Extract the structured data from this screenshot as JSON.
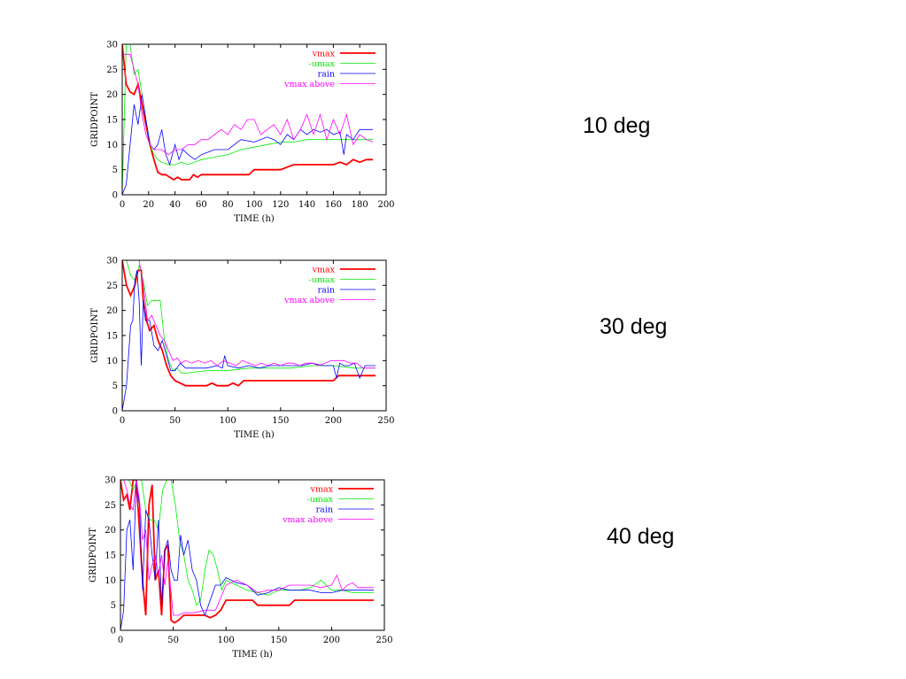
{
  "panel_labels": [
    "10 deg",
    "30 deg",
    "40 deg"
  ],
  "colors": {
    "vmax": "#ff0000",
    "umax": "#00ee00",
    "rain": "#0000ff",
    "vmax_above": "#ff00ff"
  },
  "chart_data": [
    {
      "type": "line",
      "xlabel": "TIME (h)",
      "ylabel": "GRIDPOINT",
      "xlim": [
        0,
        200
      ],
      "ylim": [
        0,
        30
      ],
      "xticks": [
        0,
        20,
        40,
        60,
        80,
        100,
        120,
        140,
        160,
        180,
        200
      ],
      "yticks": [
        0,
        5,
        10,
        15,
        20,
        25,
        30
      ],
      "grid": false,
      "legend_position": "top-right",
      "series": [
        {
          "name": "vmax",
          "color": "#ff0000",
          "x": [
            0,
            3,
            6,
            9,
            12,
            15,
            18,
            21,
            24,
            27,
            30,
            33,
            36,
            39,
            42,
            45,
            48,
            51,
            54,
            57,
            60,
            70,
            80,
            90,
            96,
            100,
            104,
            110,
            120,
            125,
            130,
            135,
            140,
            150,
            160,
            165,
            170,
            175,
            180,
            185,
            190
          ],
          "y": [
            30,
            22,
            20.5,
            20,
            22,
            18,
            14,
            10,
            7,
            4.5,
            4,
            4,
            3.5,
            3,
            3.5,
            3,
            3,
            3,
            4,
            3.5,
            4,
            4,
            4,
            4,
            4,
            5,
            5,
            5,
            5,
            5.5,
            6,
            6,
            6,
            6,
            6,
            6.5,
            6,
            7,
            6.5,
            7,
            7
          ]
        },
        {
          "name": "-umax",
          "color": "#00ee00",
          "x": [
            0,
            3,
            6,
            9,
            12,
            15,
            18,
            21,
            24,
            27,
            30,
            35,
            40,
            45,
            50,
            60,
            70,
            80,
            90,
            100,
            110,
            120,
            130,
            140,
            150,
            160,
            170,
            180,
            190
          ],
          "y": [
            0,
            30,
            30,
            24,
            25,
            20,
            15,
            10,
            8,
            7,
            6.5,
            6,
            6,
            6.5,
            6,
            7,
            7.5,
            8,
            9,
            9.5,
            10,
            10.5,
            10.5,
            11,
            11,
            11,
            11,
            11,
            11
          ]
        },
        {
          "name": "rain",
          "color": "#0000ff",
          "x": [
            0,
            3,
            6,
            9,
            12,
            15,
            18,
            21,
            24,
            27,
            30,
            33,
            36,
            40,
            43,
            46,
            50,
            55,
            60,
            70,
            80,
            90,
            100,
            110,
            115,
            120,
            125,
            130,
            135,
            140,
            145,
            150,
            155,
            160,
            165,
            168,
            170,
            175,
            180,
            185,
            190
          ],
          "y": [
            0,
            2,
            10,
            18,
            14,
            20,
            15,
            10,
            9,
            10,
            13,
            8,
            6,
            10,
            7,
            9,
            8,
            7,
            8,
            9,
            9,
            11,
            10.5,
            11.5,
            11,
            10,
            12,
            11,
            13,
            12,
            13,
            12.5,
            13,
            12,
            12.5,
            8,
            12,
            11,
            13,
            13,
            13
          ]
        },
        {
          "name": "vmax above",
          "color": "#ff00ff",
          "x": [
            0,
            3,
            6,
            9,
            12,
            15,
            18,
            21,
            24,
            27,
            30,
            35,
            40,
            45,
            50,
            55,
            60,
            65,
            70,
            75,
            80,
            85,
            90,
            95,
            100,
            105,
            110,
            115,
            120,
            125,
            130,
            135,
            140,
            145,
            150,
            155,
            160,
            165,
            170,
            175,
            180,
            185,
            190
          ],
          "y": [
            28,
            28,
            28,
            25,
            22,
            16,
            12,
            10,
            9,
            9,
            9,
            8,
            9,
            9,
            10,
            10,
            11,
            11,
            12,
            13,
            12,
            14,
            13,
            15,
            15,
            12,
            13,
            14,
            12,
            15,
            11,
            13,
            16,
            12,
            16,
            11,
            15,
            12,
            16,
            10,
            12,
            11,
            10.5
          ]
        }
      ]
    },
    {
      "type": "line",
      "xlabel": "TIME (h)",
      "ylabel": "GRIDPOINT",
      "xlim": [
        0,
        250
      ],
      "ylim": [
        0,
        30
      ],
      "xticks": [
        0,
        50,
        100,
        150,
        200,
        250
      ],
      "yticks": [
        0,
        5,
        10,
        15,
        20,
        25,
        30
      ],
      "grid": false,
      "legend_position": "top-right",
      "series": [
        {
          "name": "vmax",
          "color": "#ff0000",
          "x": [
            0,
            4,
            8,
            12,
            15,
            18,
            20,
            23,
            26,
            30,
            34,
            38,
            42,
            46,
            50,
            55,
            60,
            70,
            80,
            85,
            90,
            95,
            100,
            105,
            110,
            115,
            120,
            130,
            140,
            150,
            160,
            170,
            180,
            190,
            200,
            205,
            210,
            220,
            230,
            240
          ],
          "y": [
            30,
            25,
            23,
            25,
            28,
            28,
            22,
            18,
            16,
            17,
            14,
            12,
            9,
            7,
            6,
            5.5,
            5,
            5,
            5,
            5.5,
            5,
            5,
            5,
            5.5,
            5,
            6,
            6,
            6,
            6,
            6,
            6,
            6,
            6,
            6,
            6,
            7,
            7,
            7,
            7,
            7
          ]
        },
        {
          "name": "-umax",
          "color": "#00ee00",
          "x": [
            0,
            4,
            8,
            12,
            16,
            20,
            24,
            28,
            32,
            36,
            40,
            44,
            48,
            52,
            56,
            60,
            80,
            100,
            120,
            140,
            160,
            180,
            200,
            220,
            240
          ],
          "y": [
            30,
            30,
            27,
            26,
            29,
            26,
            21,
            22,
            22,
            22,
            14,
            10,
            8,
            8.5,
            7.5,
            7.5,
            8,
            8,
            8.5,
            8.5,
            8.5,
            9,
            9,
            8.5,
            8.5
          ]
        },
        {
          "name": "rain",
          "color": "#0000ff",
          "x": [
            0,
            4,
            8,
            10,
            12,
            14,
            16,
            18,
            20,
            22,
            26,
            30,
            34,
            38,
            42,
            46,
            50,
            55,
            60,
            70,
            80,
            90,
            95,
            97,
            100,
            110,
            120,
            130,
            140,
            150,
            160,
            170,
            180,
            190,
            200,
            203,
            206,
            210,
            215,
            220,
            225,
            230,
            240
          ],
          "y": [
            0,
            5,
            17,
            18,
            26,
            28,
            22,
            9,
            22,
            18,
            18,
            13,
            12,
            14,
            11,
            8,
            8,
            9.5,
            8.5,
            8.5,
            8.5,
            9,
            8.5,
            11,
            9,
            8.5,
            9,
            8.5,
            9,
            9,
            9,
            9,
            9.5,
            9,
            9,
            6.5,
            9.5,
            9,
            9,
            9.5,
            6.5,
            9,
            9
          ]
        },
        {
          "name": "vmax above",
          "color": "#ff00ff",
          "x": [
            0,
            4,
            8,
            12,
            16,
            20,
            24,
            28,
            32,
            36,
            40,
            44,
            48,
            52,
            56,
            60,
            66,
            72,
            78,
            84,
            90,
            96,
            102,
            108,
            114,
            120,
            126,
            132,
            138,
            144,
            150,
            156,
            162,
            168,
            174,
            180,
            186,
            192,
            198,
            204,
            210,
            216,
            222,
            228,
            234,
            240
          ],
          "y": [
            30,
            30,
            30,
            30,
            30,
            25,
            18,
            19,
            17,
            15,
            14,
            12,
            10,
            10.5,
            9.5,
            10,
            9.5,
            10,
            9.5,
            10,
            9,
            10,
            9.5,
            9,
            10,
            9.5,
            9,
            9.5,
            9,
            9.5,
            9,
            9.5,
            9.5,
            9,
            9.5,
            9.5,
            9,
            9.5,
            10,
            10,
            10,
            9.5,
            9.5,
            8.5,
            8.5,
            8.5
          ]
        }
      ]
    },
    {
      "type": "line",
      "xlabel": "TIME (h)",
      "ylabel": "GRIDPOINT",
      "xlim": [
        0,
        250
      ],
      "ylim": [
        0,
        30
      ],
      "xticks": [
        0,
        50,
        100,
        150,
        200,
        250
      ],
      "yticks": [
        0,
        5,
        10,
        15,
        20,
        25,
        30
      ],
      "grid": false,
      "legend_position": "top-right",
      "series": [
        {
          "name": "vmax",
          "color": "#ff0000",
          "x": [
            0,
            3,
            6,
            9,
            12,
            15,
            18,
            21,
            24,
            27,
            30,
            33,
            36,
            39,
            42,
            45,
            48,
            51,
            55,
            60,
            70,
            80,
            85,
            90,
            95,
            100,
            110,
            120,
            125,
            130,
            140,
            150,
            160,
            165,
            170,
            180,
            200,
            220,
            240
          ],
          "y": [
            30,
            26,
            27,
            24,
            30,
            30,
            20,
            10,
            3,
            25,
            29,
            10,
            12,
            3,
            16,
            17,
            2,
            1.5,
            2,
            3,
            3,
            3,
            2.5,
            3,
            4,
            6,
            6,
            6,
            6,
            5,
            5,
            5,
            5,
            6,
            6,
            6,
            6,
            6,
            6
          ]
        },
        {
          "name": "-umax",
          "color": "#00ee00",
          "x": [
            0,
            4,
            8,
            12,
            16,
            20,
            24,
            28,
            32,
            36,
            40,
            44,
            48,
            52,
            56,
            60,
            64,
            68,
            72,
            76,
            80,
            84,
            88,
            92,
            96,
            100,
            110,
            120,
            130,
            140,
            150,
            160,
            170,
            180,
            190,
            200,
            210,
            220,
            240
          ],
          "y": [
            30,
            30,
            30,
            28,
            30,
            30,
            24,
            22,
            22,
            20,
            28,
            30,
            30,
            25,
            18,
            15,
            10,
            8,
            5,
            6,
            12,
            16,
            15,
            12,
            8,
            10,
            9,
            8,
            7.5,
            7,
            8,
            8,
            8,
            8.5,
            10,
            8,
            8,
            7.5,
            7.5
          ]
        },
        {
          "name": "rain",
          "color": "#0000ff",
          "x": [
            0,
            3,
            6,
            9,
            12,
            15,
            18,
            21,
            24,
            27,
            30,
            33,
            36,
            39,
            42,
            45,
            48,
            51,
            54,
            57,
            60,
            64,
            68,
            72,
            76,
            80,
            85,
            90,
            95,
            100,
            110,
            120,
            130,
            140,
            150,
            160,
            170,
            180,
            190,
            200,
            210,
            220,
            240
          ],
          "y": [
            0,
            4,
            20,
            22,
            12,
            30,
            25,
            8,
            24,
            22,
            15,
            10,
            22,
            5,
            16,
            18,
            12,
            10,
            10,
            19,
            15,
            18,
            12,
            10,
            5,
            3,
            6,
            9,
            9,
            10.5,
            9.5,
            9,
            7,
            7.5,
            8.5,
            8,
            8,
            8,
            7.5,
            7.5,
            8,
            8,
            8
          ]
        },
        {
          "name": "vmax above",
          "color": "#ff00ff",
          "x": [
            0,
            3,
            6,
            9,
            12,
            15,
            18,
            21,
            24,
            27,
            30,
            33,
            36,
            39,
            42,
            45,
            50,
            55,
            60,
            70,
            80,
            90,
            100,
            110,
            120,
            130,
            140,
            150,
            160,
            170,
            180,
            190,
            200,
            205,
            210,
            215,
            220,
            225,
            230,
            240
          ],
          "y": [
            30,
            30,
            28,
            25,
            24,
            30,
            26,
            18,
            20,
            10,
            13,
            15,
            11,
            15,
            9,
            14,
            3,
            3,
            3.5,
            3.5,
            4,
            4,
            9,
            10,
            9,
            7.5,
            8,
            8,
            9,
            9,
            9,
            8.5,
            9,
            11,
            8,
            9,
            9.5,
            8.5,
            8.5,
            8.5
          ]
        }
      ]
    }
  ]
}
